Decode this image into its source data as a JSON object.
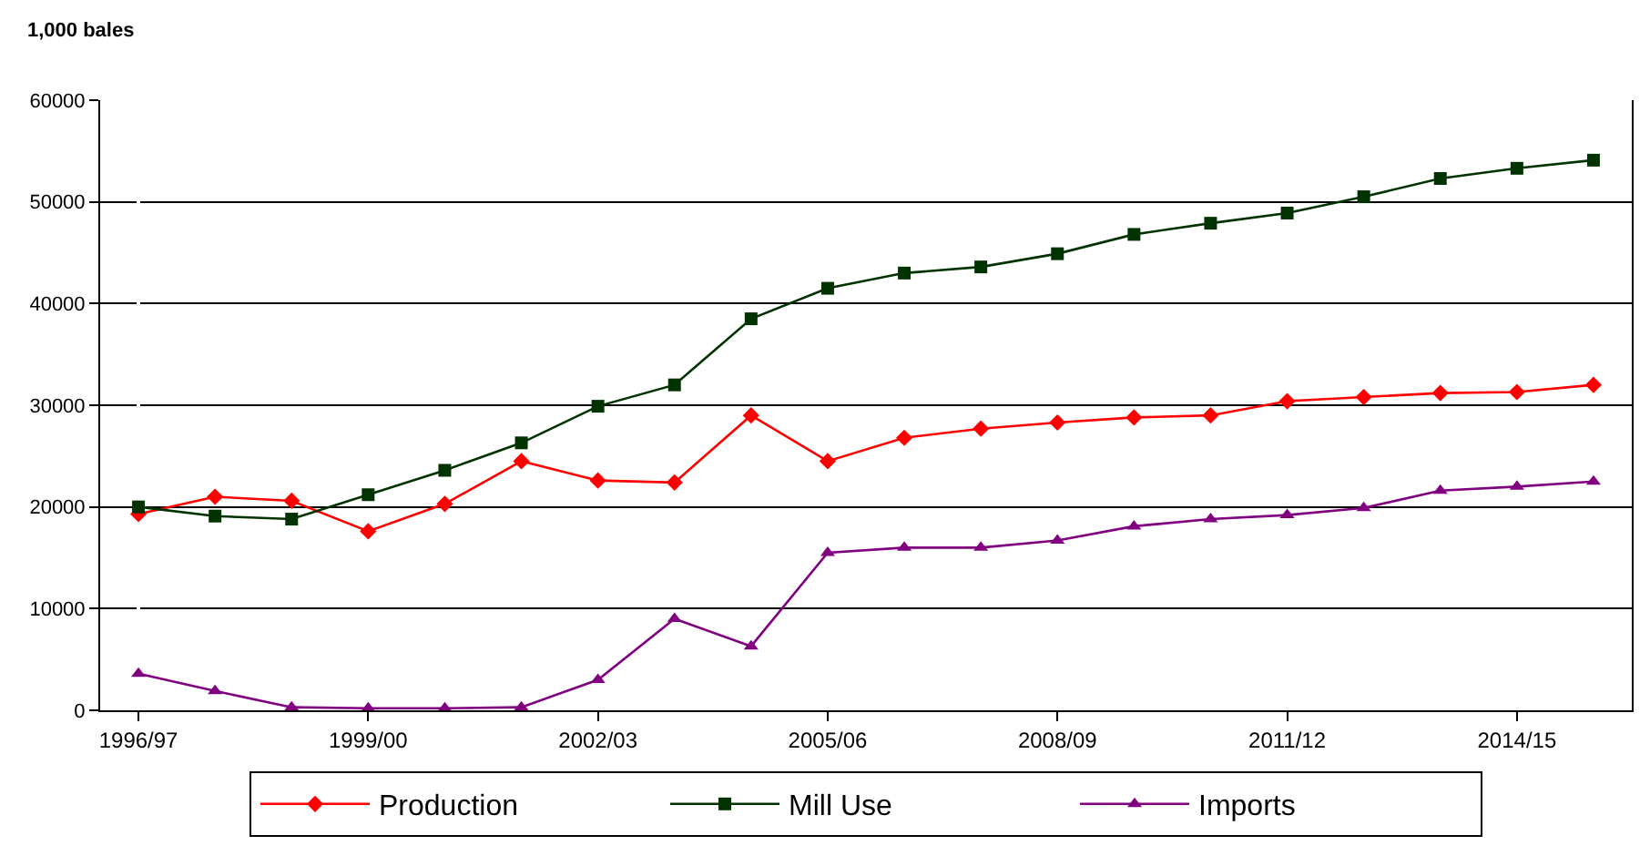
{
  "chart_data": {
    "type": "line",
    "ylabel": "1,000 bales",
    "categories": [
      "1996/97",
      null,
      null,
      "1999/00",
      null,
      null,
      "2002/03",
      null,
      null,
      "2005/06",
      null,
      null,
      "2008/09",
      null,
      null,
      "2011/12",
      null,
      null,
      "2014/15",
      null
    ],
    "series": [
      {
        "name": "Production",
        "color": "#ff0000",
        "marker": "diamond",
        "values": [
          19300,
          21000,
          20600,
          17600,
          20300,
          24500,
          22600,
          22400,
          29000,
          24500,
          26800,
          27700,
          28300,
          28800,
          29000,
          30400,
          30800,
          31200,
          31300,
          32000
        ]
      },
      {
        "name": "Mill Use",
        "color": "#003300",
        "marker": "square",
        "values": [
          20000,
          19100,
          18800,
          21200,
          23600,
          26300,
          29900,
          32000,
          38500,
          41500,
          43000,
          43600,
          44900,
          46800,
          47900,
          48900,
          50500,
          52300,
          53300,
          54100
        ]
      },
      {
        "name": "Imports",
        "color": "#800080",
        "marker": "triangle",
        "values": [
          3600,
          1900,
          300,
          200,
          200,
          300,
          3000,
          9000,
          6300,
          15500,
          16000,
          16000,
          16700,
          18100,
          18800,
          19200,
          19900,
          21600,
          22000,
          22500
        ]
      }
    ],
    "ylim": [
      0,
      60000
    ],
    "yticks": [
      0,
      10000,
      20000,
      30000,
      40000,
      50000,
      60000
    ],
    "grid": "y",
    "legend": "bottom"
  }
}
